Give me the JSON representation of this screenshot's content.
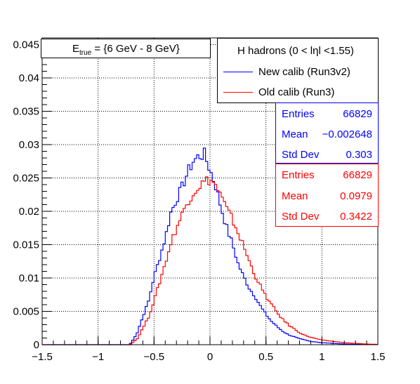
{
  "chart_data": {
    "type": "line",
    "xlim": [
      -1.5,
      1.5
    ],
    "ylim": [
      0,
      0.046
    ],
    "grid": true,
    "x_ticks": [
      "−1.5",
      "−1",
      "−0.5",
      "0",
      "0.5",
      "1",
      "1.5"
    ],
    "y_ticks": [
      "0",
      "0.005",
      "0.01",
      "0.015",
      "0.02",
      "0.025",
      "0.03",
      "0.035",
      "0.04",
      "0.045"
    ],
    "energy_label": {
      "prefix": "E",
      "sub": "true",
      "rest": " =  {6 GeV - 8 GeV}"
    },
    "legend": {
      "title": "H hadrons (0 < lηl <1.55)",
      "entries": [
        {
          "label": "New calib (Run3v2)",
          "color": "#0000ff"
        },
        {
          "label": "Old calib (Run3)",
          "color": "#ff0000"
        }
      ]
    },
    "stats": [
      {
        "color": "#0000ff",
        "rows": [
          {
            "k": "Entries",
            "v": "66829"
          },
          {
            "k": "Mean",
            "v": "−0.002648"
          },
          {
            "k": "Std Dev",
            "v": "0.303"
          }
        ]
      },
      {
        "color": "#ff0000",
        "rows": [
          {
            "k": "Entries",
            "v": "66829"
          },
          {
            "k": "Mean",
            "v": "0.0979"
          },
          {
            "k": "Std Dev",
            "v": "0.3422"
          }
        ]
      }
    ],
    "series": [
      {
        "name": "New calib (Run3v2)",
        "color": "#0000ff",
        "x": [
          -1.5,
          -0.72,
          -0.7,
          -0.65,
          -0.6,
          -0.55,
          -0.5,
          -0.45,
          -0.4,
          -0.35,
          -0.3,
          -0.25,
          -0.2,
          -0.15,
          -0.1,
          -0.05,
          0,
          0.05,
          0.1,
          0.15,
          0.2,
          0.25,
          0.3,
          0.35,
          0.4,
          0.45,
          0.5,
          0.55,
          0.6,
          0.65,
          0.7,
          0.75,
          0.8,
          0.85,
          0.9,
          0.95,
          1.0,
          1.1,
          1.2,
          1.3,
          1.4,
          1.5
        ],
        "y": [
          0,
          0,
          0.0004,
          0.0018,
          0.0042,
          0.0065,
          0.0102,
          0.013,
          0.016,
          0.0198,
          0.0218,
          0.0236,
          0.0258,
          0.0275,
          0.0283,
          0.0285,
          0.0262,
          0.0238,
          0.0205,
          0.0175,
          0.0151,
          0.0122,
          0.0102,
          0.0085,
          0.0073,
          0.0058,
          0.0045,
          0.0035,
          0.0027,
          0.002,
          0.0015,
          0.0012,
          0.0009,
          0.0007,
          0.0005,
          0.0004,
          0.0003,
          0.0002,
          0.0001,
          5e-05,
          3e-05,
          2e-05
        ]
      },
      {
        "name": "Old calib (Run3)",
        "color": "#ff0000",
        "x": [
          -1.5,
          -0.72,
          -0.7,
          -0.65,
          -0.6,
          -0.55,
          -0.5,
          -0.45,
          -0.4,
          -0.35,
          -0.3,
          -0.25,
          -0.2,
          -0.15,
          -0.1,
          -0.05,
          0,
          0.05,
          0.1,
          0.15,
          0.2,
          0.25,
          0.3,
          0.35,
          0.4,
          0.45,
          0.5,
          0.55,
          0.6,
          0.65,
          0.7,
          0.75,
          0.8,
          0.85,
          0.9,
          0.95,
          1.0,
          1.1,
          1.2,
          1.3,
          1.4,
          1.5
        ],
        "y": [
          0,
          0,
          0.0002,
          0.0009,
          0.0025,
          0.0041,
          0.0066,
          0.0094,
          0.0122,
          0.0152,
          0.0175,
          0.0195,
          0.0215,
          0.0228,
          0.0238,
          0.0244,
          0.0248,
          0.0239,
          0.0222,
          0.0203,
          0.0188,
          0.0168,
          0.0148,
          0.0125,
          0.0105,
          0.0088,
          0.0072,
          0.006,
          0.0048,
          0.0038,
          0.003,
          0.0024,
          0.0018,
          0.0014,
          0.0011,
          0.0009,
          0.0007,
          0.0005,
          0.0003,
          0.0002,
          0.0001,
          5e-05
        ]
      }
    ]
  }
}
